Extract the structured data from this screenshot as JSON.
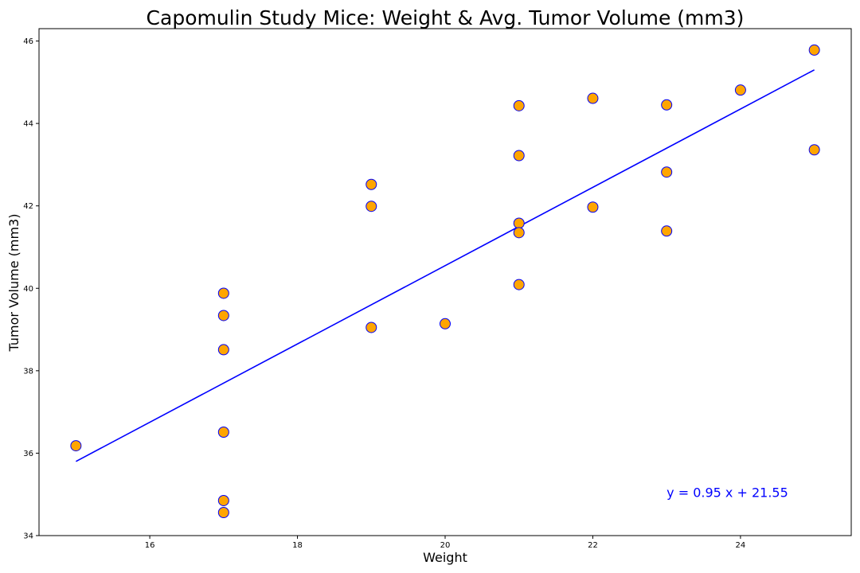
{
  "chart_data": {
    "type": "scatter",
    "title": "Capomulin Study Mice: Weight & Avg. Tumor Volume (mm3)",
    "xlabel": "Weight",
    "ylabel": "Tumor Volume (mm3)",
    "xlim": [
      14.5,
      25.5
    ],
    "ylim": [
      34,
      46.3
    ],
    "xticks": [
      16,
      18,
      20,
      22,
      24
    ],
    "yticks": [
      34,
      36,
      38,
      40,
      42,
      44,
      46
    ],
    "grid": false,
    "series": [
      {
        "marker_fill": "#FFA500",
        "marker_edge": "#0000FF",
        "points": [
          {
            "x": 15,
            "y": 36.18
          },
          {
            "x": 17,
            "y": 39.88
          },
          {
            "x": 17,
            "y": 39.34
          },
          {
            "x": 17,
            "y": 38.51
          },
          {
            "x": 17,
            "y": 36.51
          },
          {
            "x": 17,
            "y": 34.85
          },
          {
            "x": 17,
            "y": 34.56
          },
          {
            "x": 19,
            "y": 42.52
          },
          {
            "x": 19,
            "y": 41.99
          },
          {
            "x": 19,
            "y": 39.05
          },
          {
            "x": 20,
            "y": 39.14
          },
          {
            "x": 21,
            "y": 44.43
          },
          {
            "x": 21,
            "y": 43.22
          },
          {
            "x": 21,
            "y": 41.58
          },
          {
            "x": 21,
            "y": 41.35
          },
          {
            "x": 21,
            "y": 40.09
          },
          {
            "x": 22,
            "y": 44.61
          },
          {
            "x": 22,
            "y": 41.97
          },
          {
            "x": 23,
            "y": 44.45
          },
          {
            "x": 23,
            "y": 42.82
          },
          {
            "x": 23,
            "y": 41.39
          },
          {
            "x": 24,
            "y": 44.81
          },
          {
            "x": 25,
            "y": 45.78
          },
          {
            "x": 25,
            "y": 43.36
          }
        ]
      }
    ],
    "regression": {
      "slope": 0.95,
      "intercept": 21.55,
      "x_from": 15,
      "x_to": 25,
      "color": "#0000FF",
      "equation_label": "y = 0.95 x + 21.55",
      "equation_x": 23,
      "equation_y": 35.05
    }
  }
}
